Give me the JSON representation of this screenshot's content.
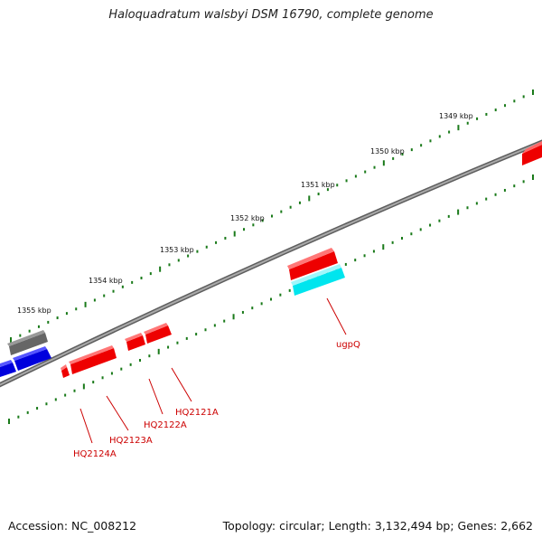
{
  "title": "Haloquadratum walsbyi DSM 16790, complete genome",
  "footer": {
    "accession": "Accession: NC_008212",
    "topology": "Topology: circular; Length: 3,132,494 bp; Genes: 2,662"
  },
  "colors": {
    "backbone": "#8a8a8a",
    "ticks": "#1a7a1a",
    "gene_forward": "#ee0000",
    "gene_reverse": "#0000dd",
    "gene_other": "#666666",
    "gene_highlight": "#00e5ee",
    "label_text": "#cc0000"
  },
  "scale_labels": [
    "1349 kbp",
    "1350 kbp",
    "1351 kbp",
    "1352 kbp",
    "1353 kbp",
    "1354 kbp",
    "1355 kbp"
  ],
  "gene_labels": [
    "ugpQ",
    "HQ2121A",
    "HQ2122A",
    "HQ2123A",
    "HQ2124A"
  ]
}
